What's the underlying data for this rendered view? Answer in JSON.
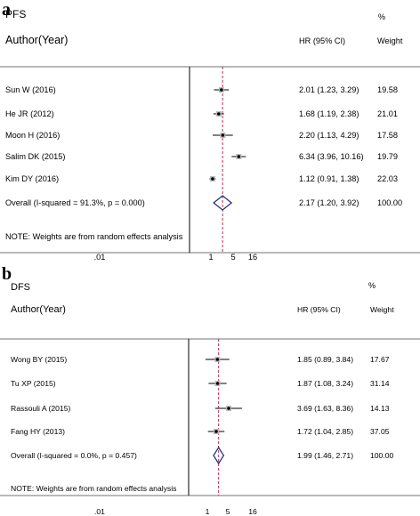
{
  "chart_data": [
    {
      "type": "forest",
      "panel_letter": "a",
      "title": "PFS",
      "col_author": "Author(Year)",
      "col_hr": "HR (95% CI)",
      "col_weight_top": "%",
      "col_weight": "Weight",
      "xscale": "log",
      "xticks": [
        ".01",
        "1",
        "5",
        "16"
      ],
      "xtick_values": [
        0.01,
        1,
        5,
        16
      ],
      "xlim": [
        0.01,
        16
      ],
      "pooled_hr": 2.17,
      "studies": [
        {
          "label": "Sun W (2016)",
          "hr": 2.01,
          "lo": 1.23,
          "hi": 3.29,
          "hr_text": "2.01 (1.23, 3.29)",
          "weight": "19.58"
        },
        {
          "label": "He JR (2012)",
          "hr": 1.68,
          "lo": 1.19,
          "hi": 2.38,
          "hr_text": "1.68 (1.19, 2.38)",
          "weight": "21.01"
        },
        {
          "label": "Moon H (2016)",
          "hr": 2.2,
          "lo": 1.13,
          "hi": 4.29,
          "hr_text": "2.20 (1.13, 4.29)",
          "weight": "17.58"
        },
        {
          "label": "Salim DK (2015)",
          "hr": 6.34,
          "lo": 3.96,
          "hi": 10.16,
          "hr_text": "6.34 (3.96, 10.16)",
          "weight": "19.79"
        },
        {
          "label": "Kim DY (2016)",
          "hr": 1.12,
          "lo": 0.91,
          "hi": 1.38,
          "hr_text": "1.12 (0.91, 1.38)",
          "weight": "22.03"
        }
      ],
      "overall": {
        "label": "Overall  (I-squared = 91.3%, p = 0.000)",
        "hr": 2.17,
        "lo": 1.2,
        "hi": 3.92,
        "hr_text": "2.17 (1.20, 3.92)",
        "weight": "100.00"
      },
      "note": "NOTE: Weights are from random effects analysis"
    },
    {
      "type": "forest",
      "panel_letter": "b",
      "title": "DFS",
      "col_author": "Author(Year)",
      "col_hr": "HR (95% CI)",
      "col_weight_top": "%",
      "col_weight": "Weight",
      "xscale": "log",
      "xticks": [
        ".01",
        "1",
        "5",
        "16"
      ],
      "xtick_values": [
        0.01,
        1,
        5,
        16
      ],
      "xlim": [
        0.01,
        16
      ],
      "pooled_hr": 1.99,
      "studies": [
        {
          "label": "Wong BY (2015)",
          "hr": 1.85,
          "lo": 0.89,
          "hi": 3.84,
          "hr_text": "1.85 (0.89, 3.84)",
          "weight": "17.67"
        },
        {
          "label": "Tu XP (2015)",
          "hr": 1.87,
          "lo": 1.08,
          "hi": 3.24,
          "hr_text": "1.87 (1.08, 3.24)",
          "weight": "31.14"
        },
        {
          "label": "Rassouli A (2015)",
          "hr": 3.69,
          "lo": 1.63,
          "hi": 8.36,
          "hr_text": "3.69 (1.63, 8.36)",
          "weight": "14.13"
        },
        {
          "label": "Fang HY (2013)",
          "hr": 1.72,
          "lo": 1.04,
          "hi": 2.85,
          "hr_text": "1.72 (1.04, 2.85)",
          "weight": "37.05"
        }
      ],
      "overall": {
        "label": "Overall  (I-squared = 0.0%, p = 0.457)",
        "hr": 1.99,
        "lo": 1.46,
        "hi": 2.71,
        "hr_text": "1.99 (1.46, 2.71)",
        "weight": "100.00"
      },
      "note": "NOTE: Weights are from random effects analysis"
    }
  ]
}
